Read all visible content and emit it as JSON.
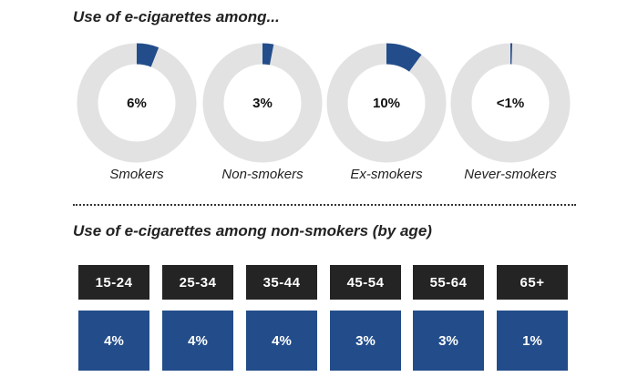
{
  "colors": {
    "ring": "#e2e2e2",
    "accent": "#234d8a",
    "age_header": "#242424"
  },
  "chart_data": [
    {
      "type": "pie",
      "title": "Use of e-cigarettes among...",
      "categories": [
        "Smokers",
        "Non-smokers",
        "Ex-smokers",
        "Never-smokers"
      ],
      "values": [
        6,
        3,
        10,
        0.5
      ],
      "labels": [
        "6%",
        "3%",
        "10%",
        "<1%"
      ]
    },
    {
      "type": "table",
      "title": "Use of e-cigarettes among non-smokers (by age)",
      "categories": [
        "15-24",
        "25-34",
        "35-44",
        "45-54",
        "55-64",
        "65+"
      ],
      "values": [
        4,
        4,
        4,
        3,
        3,
        1
      ],
      "labels": [
        "4%",
        "4%",
        "4%",
        "3%",
        "3%",
        "1%"
      ]
    }
  ]
}
